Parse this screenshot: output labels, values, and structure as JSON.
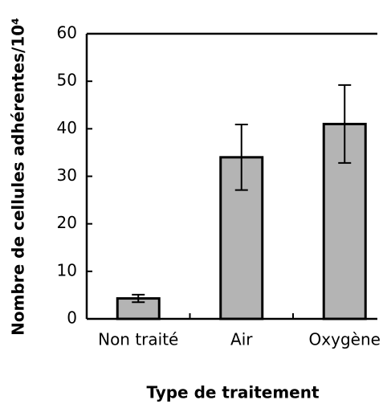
{
  "chart_data": {
    "type": "bar",
    "xlabel": "Type de traitement",
    "ylabel": "Nombre de cellules adhérentes/10⁴",
    "categories": [
      "Non traité",
      "Air",
      "Oxygène"
    ],
    "values": [
      4.3,
      34,
      41
    ],
    "errors": [
      0.8,
      6.9,
      8.2
    ],
    "color": "#b4b4b4",
    "ylim": [
      0,
      60
    ],
    "yticks": [
      0,
      10,
      20,
      30,
      40,
      50,
      60
    ]
  }
}
